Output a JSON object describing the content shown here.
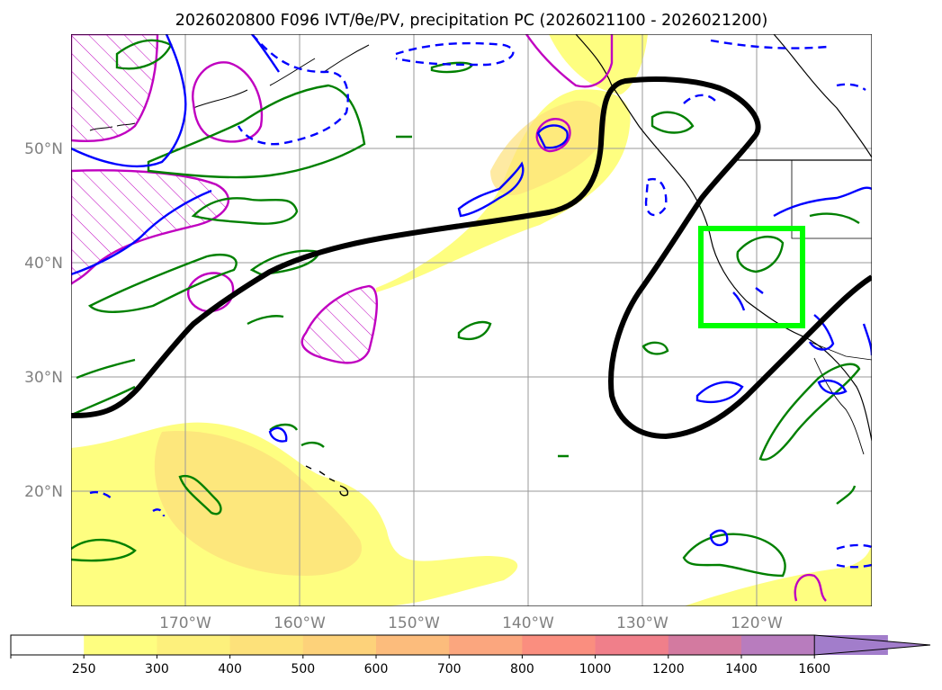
{
  "title": "2026020800 F096 IVT/θe/PV, precipitation PC (2026021100 - 2026021200)",
  "map": {
    "lat_labels": [
      "50°N",
      "40°N",
      "30°N",
      "20°N"
    ],
    "lon_labels": [
      "170°W",
      "160°W",
      "150°W",
      "140°W",
      "130°W",
      "120°W"
    ],
    "lat_range": [
      10,
      60
    ],
    "lon_range": [
      -180,
      -110
    ],
    "region_box": {
      "lat": [
        34.5,
        43
      ],
      "lon": [
        -125,
        -116
      ],
      "color": "#00ff00"
    }
  },
  "colorbar": {
    "ticks": [
      "250",
      "300",
      "400",
      "500",
      "600",
      "700",
      "800",
      "1000",
      "1200",
      "1400",
      "1600"
    ],
    "colors": [
      "#ffffff",
      "#fefe80",
      "#fdf07c",
      "#fde17a",
      "#fdd27a",
      "#fcbc7c",
      "#fba67e",
      "#fa8e7f",
      "#f07f8a",
      "#d37aa0",
      "#b87cbe",
      "#a27dcb"
    ],
    "extend": "max"
  },
  "legend_colors": {
    "ivt_fill": "#fefe80",
    "theta_e": "#008000",
    "pv": "#0000ff",
    "pv_hatch": "#c000c0",
    "precip_pc": "#000000"
  }
}
